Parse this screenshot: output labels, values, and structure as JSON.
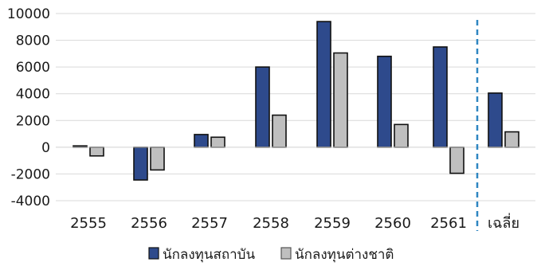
{
  "chart_data": {
    "type": "bar",
    "title": "",
    "xlabel": "",
    "ylabel": "",
    "ylim": [
      -4000,
      10000
    ],
    "yticks": [
      10000,
      8000,
      6000,
      4000,
      2000,
      0,
      -2000,
      -4000
    ],
    "ytick_labels": [
      "10000",
      "8000",
      "6000",
      "4000",
      "2000",
      "0",
      "-2000",
      "-4000"
    ],
    "grid": true,
    "legend_position": "bottom",
    "categories": [
      "2555",
      "2556",
      "2557",
      "2558",
      "2559",
      "2560",
      "2561",
      "เฉลี่ย"
    ],
    "separator_before_category": 7,
    "series": [
      {
        "name": "นักลงทุนสถาบัน",
        "color": "#2e4a8c",
        "values": [
          100,
          -2450,
          950,
          6000,
          9400,
          6800,
          7500,
          4050
        ]
      },
      {
        "name": "นักลงทุนต่างชาติ",
        "color": "#bfbfbf",
        "values": [
          -650,
          -1700,
          750,
          2400,
          7050,
          1700,
          -1950,
          1150
        ]
      }
    ],
    "separator_color": "#2e86c1"
  }
}
